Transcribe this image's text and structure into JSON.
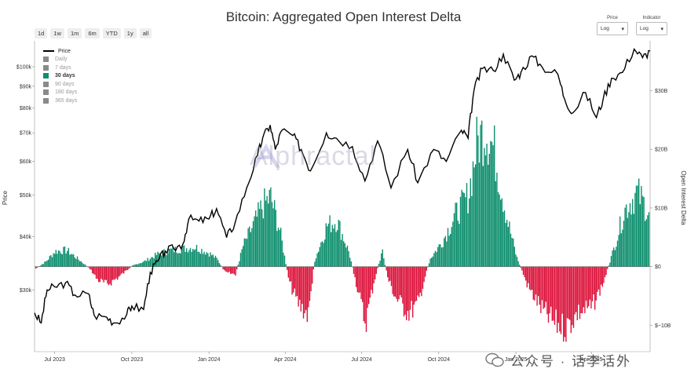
{
  "chart_data": {
    "type": "bar",
    "title": "Bitcoin: Aggregated Open Interest Delta",
    "ylabel_left": "Price",
    "ylabel_right": "Open Interest Delta",
    "left_axis": {
      "scale": "log",
      "ticks": [
        "$100k",
        "$90k",
        "$80k",
        "$70k",
        "$60k",
        "$50k",
        "$40k",
        "$30k"
      ],
      "tick_values": [
        100000,
        90000,
        80000,
        70000,
        60000,
        50000,
        40000,
        30000
      ],
      "range": [
        21500,
        115000
      ]
    },
    "right_axis": {
      "scale": "linear",
      "ticks": [
        "$30B",
        "$20B",
        "$10B",
        "$0",
        "$−10B"
      ],
      "tick_values": [
        30,
        20,
        10,
        0,
        -10
      ],
      "range": [
        -14.5,
        38.5
      ]
    },
    "x_axis": {
      "ticks": [
        "Jul 2023",
        "Oct 2023",
        "Jan 2024",
        "Apr 2024",
        "Jul 2024",
        "Oct 2024",
        "Jan 2025",
        "Apr 2025"
      ],
      "tick_dates": [
        "2023-07-01",
        "2023-10-01",
        "2024-01-01",
        "2024-04-01",
        "2024-07-01",
        "2024-10-01",
        "2025-01-01",
        "2025-04-01"
      ],
      "start": "2023-06-07",
      "end": "2025-06-10"
    },
    "series": [
      {
        "name": "Price",
        "kind": "line",
        "color": "#000000",
        "points": [
          [
            "2023-06-07",
            26500
          ],
          [
            "2023-06-15",
            25100
          ],
          [
            "2023-06-22",
            30000
          ],
          [
            "2023-07-01",
            30500
          ],
          [
            "2023-07-14",
            31200
          ],
          [
            "2023-07-25",
            29200
          ],
          [
            "2023-08-10",
            29400
          ],
          [
            "2023-08-17",
            26200
          ],
          [
            "2023-09-01",
            25900
          ],
          [
            "2023-09-11",
            25100
          ],
          [
            "2023-09-25",
            26300
          ],
          [
            "2023-10-01",
            27500
          ],
          [
            "2023-10-15",
            27000
          ],
          [
            "2023-10-23",
            33000
          ],
          [
            "2023-11-01",
            35000
          ],
          [
            "2023-11-10",
            37000
          ],
          [
            "2023-11-20",
            37500
          ],
          [
            "2023-12-01",
            38500
          ],
          [
            "2023-12-08",
            44000
          ],
          [
            "2023-12-20",
            43500
          ],
          [
            "2024-01-01",
            44000
          ],
          [
            "2024-01-10",
            46500
          ],
          [
            "2024-01-22",
            39800
          ],
          [
            "2024-02-01",
            43000
          ],
          [
            "2024-02-15",
            52000
          ],
          [
            "2024-02-28",
            62000
          ],
          [
            "2024-03-05",
            68000
          ],
          [
            "2024-03-14",
            73000
          ],
          [
            "2024-03-20",
            64000
          ],
          [
            "2024-03-28",
            71000
          ],
          [
            "2024-04-10",
            69000
          ],
          [
            "2024-04-20",
            64000
          ],
          [
            "2024-05-01",
            57000
          ],
          [
            "2024-05-20",
            70000
          ],
          [
            "2024-06-01",
            68000
          ],
          [
            "2024-06-20",
            65000
          ],
          [
            "2024-07-05",
            54000
          ],
          [
            "2024-07-20",
            67000
          ],
          [
            "2024-08-05",
            52000
          ],
          [
            "2024-08-25",
            64000
          ],
          [
            "2024-09-06",
            53500
          ],
          [
            "2024-09-25",
            64000
          ],
          [
            "2024-10-10",
            60000
          ],
          [
            "2024-10-28",
            71000
          ],
          [
            "2024-11-05",
            68000
          ],
          [
            "2024-11-12",
            88000
          ],
          [
            "2024-11-22",
            99000
          ],
          [
            "2024-12-05",
            98000
          ],
          [
            "2024-12-17",
            107000
          ],
          [
            "2024-12-30",
            93000
          ],
          [
            "2025-01-07",
            97000
          ],
          [
            "2025-01-20",
            106000
          ],
          [
            "2025-02-01",
            100000
          ],
          [
            "2025-02-20",
            96000
          ],
          [
            "2025-02-28",
            84000
          ],
          [
            "2025-03-10",
            78000
          ],
          [
            "2025-03-25",
            87000
          ],
          [
            "2025-04-07",
            76000
          ],
          [
            "2025-04-15",
            84000
          ],
          [
            "2025-04-25",
            94000
          ],
          [
            "2025-05-08",
            97000
          ],
          [
            "2025-05-22",
            110000
          ],
          [
            "2025-06-01",
            105000
          ],
          [
            "2025-06-10",
            109000
          ]
        ]
      },
      {
        "name": "30 days",
        "kind": "bar",
        "color_positive": "#0e8f6e",
        "color_negative": "#dc143c",
        "unit": "B",
        "points": [
          [
            "2023-06-07",
            -0.5
          ],
          [
            "2023-06-20",
            1.0
          ],
          [
            "2023-07-01",
            3.0
          ],
          [
            "2023-07-15",
            3.2
          ],
          [
            "2023-08-01",
            1.0
          ],
          [
            "2023-08-12",
            -0.5
          ],
          [
            "2023-08-20",
            -2.5
          ],
          [
            "2023-09-01",
            -3.5
          ],
          [
            "2023-09-15",
            -2.0
          ],
          [
            "2023-10-01",
            0.2
          ],
          [
            "2023-10-15",
            1.0
          ],
          [
            "2023-11-01",
            2.5
          ],
          [
            "2023-11-15",
            3.2
          ],
          [
            "2023-12-01",
            3.5
          ],
          [
            "2023-12-15",
            3.8
          ],
          [
            "2024-01-01",
            2.6
          ],
          [
            "2024-01-10",
            1.5
          ],
          [
            "2024-01-20",
            -1.2
          ],
          [
            "2024-02-01",
            -1.5
          ],
          [
            "2024-02-10",
            4.0
          ],
          [
            "2024-02-25",
            9.0
          ],
          [
            "2024-03-05",
            12.0
          ],
          [
            "2024-03-14",
            13.5
          ],
          [
            "2024-03-25",
            7.0
          ],
          [
            "2024-04-05",
            -3.0
          ],
          [
            "2024-04-15",
            -7.0
          ],
          [
            "2024-04-28",
            -9.5
          ],
          [
            "2024-05-05",
            1.0
          ],
          [
            "2024-05-20",
            8.0
          ],
          [
            "2024-06-01",
            9.0
          ],
          [
            "2024-06-15",
            3.0
          ],
          [
            "2024-06-25",
            -4.0
          ],
          [
            "2024-07-05",
            -11.0
          ],
          [
            "2024-07-15",
            -3.0
          ],
          [
            "2024-07-25",
            3.0
          ],
          [
            "2024-08-01",
            -2.5
          ],
          [
            "2024-08-10",
            -6.0
          ],
          [
            "2024-08-25",
            -9.0
          ],
          [
            "2024-09-05",
            -7.5
          ],
          [
            "2024-09-20",
            1.5
          ],
          [
            "2024-10-05",
            5.0
          ],
          [
            "2024-10-20",
            10.0
          ],
          [
            "2024-11-05",
            14.0
          ],
          [
            "2024-11-15",
            24.0
          ],
          [
            "2024-11-25",
            27.0
          ],
          [
            "2024-12-05",
            23.0
          ],
          [
            "2024-12-20",
            10.0
          ],
          [
            "2025-01-01",
            2.0
          ],
          [
            "2025-01-15",
            -4.0
          ],
          [
            "2025-02-01",
            -8.5
          ],
          [
            "2025-02-15",
            -11.0
          ],
          [
            "2025-03-01",
            -12.0
          ],
          [
            "2025-03-15",
            -9.0
          ],
          [
            "2025-04-01",
            -8.0
          ],
          [
            "2025-04-15",
            -3.0
          ],
          [
            "2025-04-28",
            4.0
          ],
          [
            "2025-05-10",
            11.0
          ],
          [
            "2025-05-25",
            14.5
          ],
          [
            "2025-06-10",
            10.0
          ]
        ]
      }
    ],
    "legend": {
      "placement": "top-left",
      "price_label": "Price",
      "items": [
        "Daily",
        "7 days",
        "30 days",
        "90 days",
        "180 days",
        "365 days"
      ],
      "active": "30 days"
    },
    "grid": false
  },
  "controls": {
    "ranges": [
      "1d",
      "1w",
      "1m",
      "6m",
      "YTD",
      "1y",
      "all"
    ],
    "price_selector": {
      "label": "Price",
      "value": "Log"
    },
    "indicator_selector": {
      "label": "Indicator",
      "value": "Log"
    }
  },
  "watermark": "Alphractal",
  "footer_tag": "公众号 · 话李话外"
}
